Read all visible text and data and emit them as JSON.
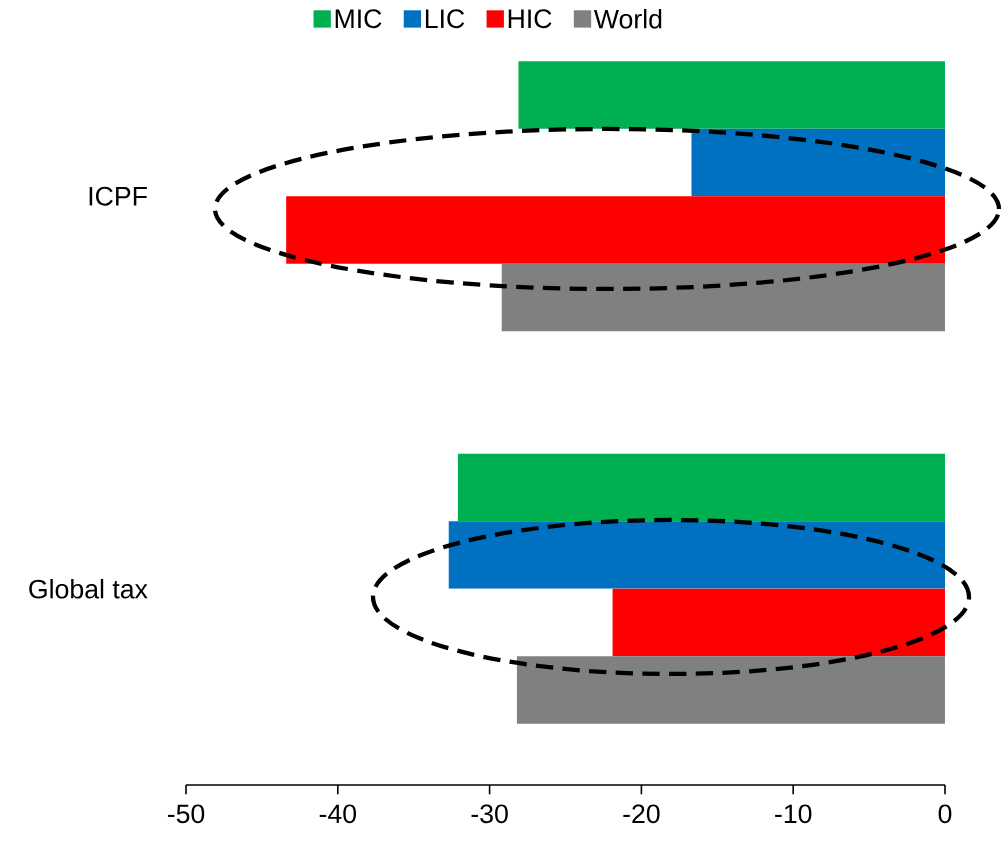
{
  "chart_data": {
    "type": "bar",
    "orientation": "horizontal",
    "categories": [
      "ICPF",
      "Global tax"
    ],
    "series": [
      {
        "name": "MIC",
        "color": "#00b050",
        "values": [
          -28.1,
          -32.1
        ]
      },
      {
        "name": "LIC",
        "color": "#0070c0",
        "values": [
          -16.7,
          -32.7
        ]
      },
      {
        "name": "HIC",
        "color": "#ff0000",
        "values": [
          -43.4,
          -21.9
        ]
      },
      {
        "name": "World",
        "color": "#808080",
        "values": [
          -29.2,
          -28.2
        ]
      }
    ],
    "xlim": [
      -50,
      0
    ],
    "xticks": [
      -50,
      -40,
      -30,
      -20,
      -10,
      0
    ],
    "grid": false,
    "legend": "top"
  }
}
